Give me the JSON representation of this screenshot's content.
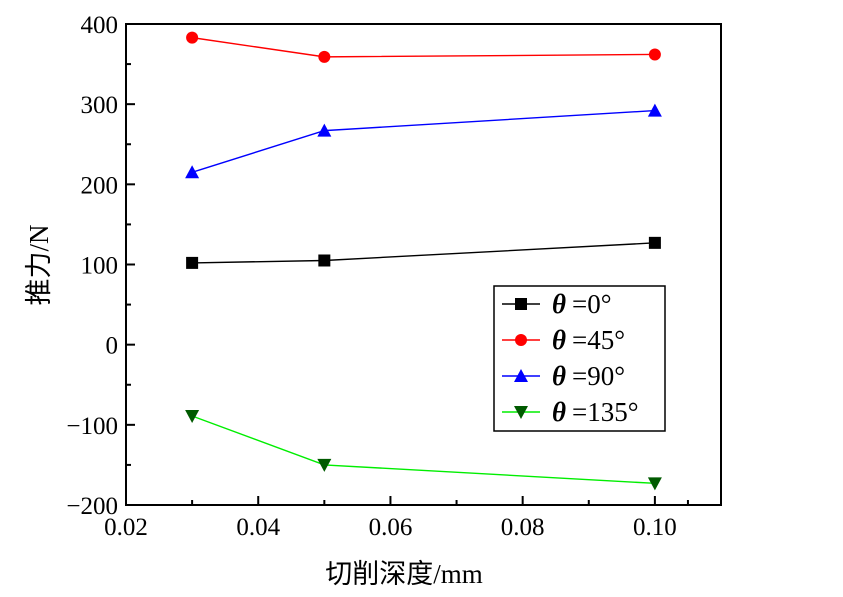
{
  "chart_data": {
    "type": "line",
    "title": "",
    "xlabel": "切削深度/mm",
    "ylabel": "推力/N",
    "xlim": [
      0.02,
      0.11
    ],
    "ylim": [
      -200,
      400
    ],
    "xticks": [
      0.02,
      0.04,
      0.06,
      0.08,
      0.1
    ],
    "xtick_labels": [
      "0.02",
      "0.04",
      "0.06",
      "0.08",
      "0.10"
    ],
    "yticks": [
      -200,
      -100,
      0,
      100,
      200,
      300,
      400
    ],
    "ytick_labels": [
      "−200",
      "−100",
      "0",
      "100",
      "200",
      "300",
      "400"
    ],
    "grid": false,
    "legend_position": "right",
    "x": [
      0.03,
      0.05,
      0.1
    ],
    "series": [
      {
        "name_symbol": "θ",
        "name_value": "=0°",
        "color": "#000000",
        "marker": "square",
        "values": [
          102,
          105,
          127
        ]
      },
      {
        "name_symbol": "θ",
        "name_value": "=45°",
        "color": "#ff0000",
        "marker": "circle",
        "values": [
          383,
          359,
          362
        ]
      },
      {
        "name_symbol": "θ",
        "name_value": "=90°",
        "color": "#0000ff",
        "marker": "triangle-up",
        "values": [
          215,
          267,
          292
        ]
      },
      {
        "name_symbol": "θ",
        "name_value": "=135°",
        "color": "#00ee00",
        "marker_color": "#005a00",
        "marker": "triangle-down",
        "values": [
          -89,
          -150,
          -173
        ]
      }
    ]
  }
}
